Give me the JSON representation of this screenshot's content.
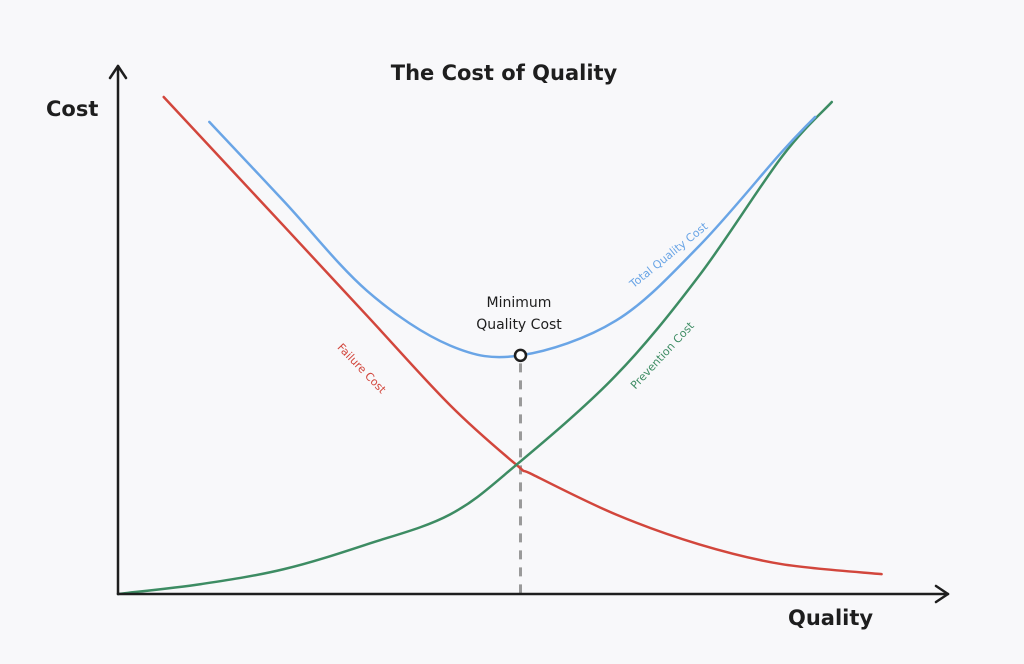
{
  "chart_data": {
    "type": "line",
    "title": "The Cost of Quality",
    "xlabel": "Quality",
    "ylabel": "Cost",
    "xlim": [
      0,
      100
    ],
    "ylim": [
      0,
      100
    ],
    "grid": false,
    "legend": "none",
    "series": [
      {
        "name": "Failure Cost",
        "color": "#d2463c",
        "x": [
          5.5,
          20,
          30,
          40,
          48,
          50,
          60,
          70,
          80,
          92
        ],
        "y": [
          100,
          74,
          56,
          38,
          26,
          24,
          16,
          10,
          6,
          4
        ]
      },
      {
        "name": "Prevention Cost",
        "color": "#3d8c63",
        "x": [
          0,
          10,
          20,
          30,
          40,
          48,
          60,
          70,
          80,
          86
        ],
        "y": [
          0,
          2,
          5,
          10,
          16,
          26,
          44,
          64,
          88,
          99
        ]
      },
      {
        "name": "Total Quality Cost",
        "color": "#6aa5e6",
        "x": [
          11,
          20,
          30,
          40,
          48.5,
          60,
          70,
          80,
          84
        ],
        "y": [
          95,
          79,
          61,
          50,
          48,
          55,
          70,
          89,
          96
        ]
      }
    ],
    "annotations": [
      {
        "text_lines": [
          "Minimum",
          "Quality Cost"
        ],
        "x": 48.5,
        "y": 48
      }
    ]
  }
}
